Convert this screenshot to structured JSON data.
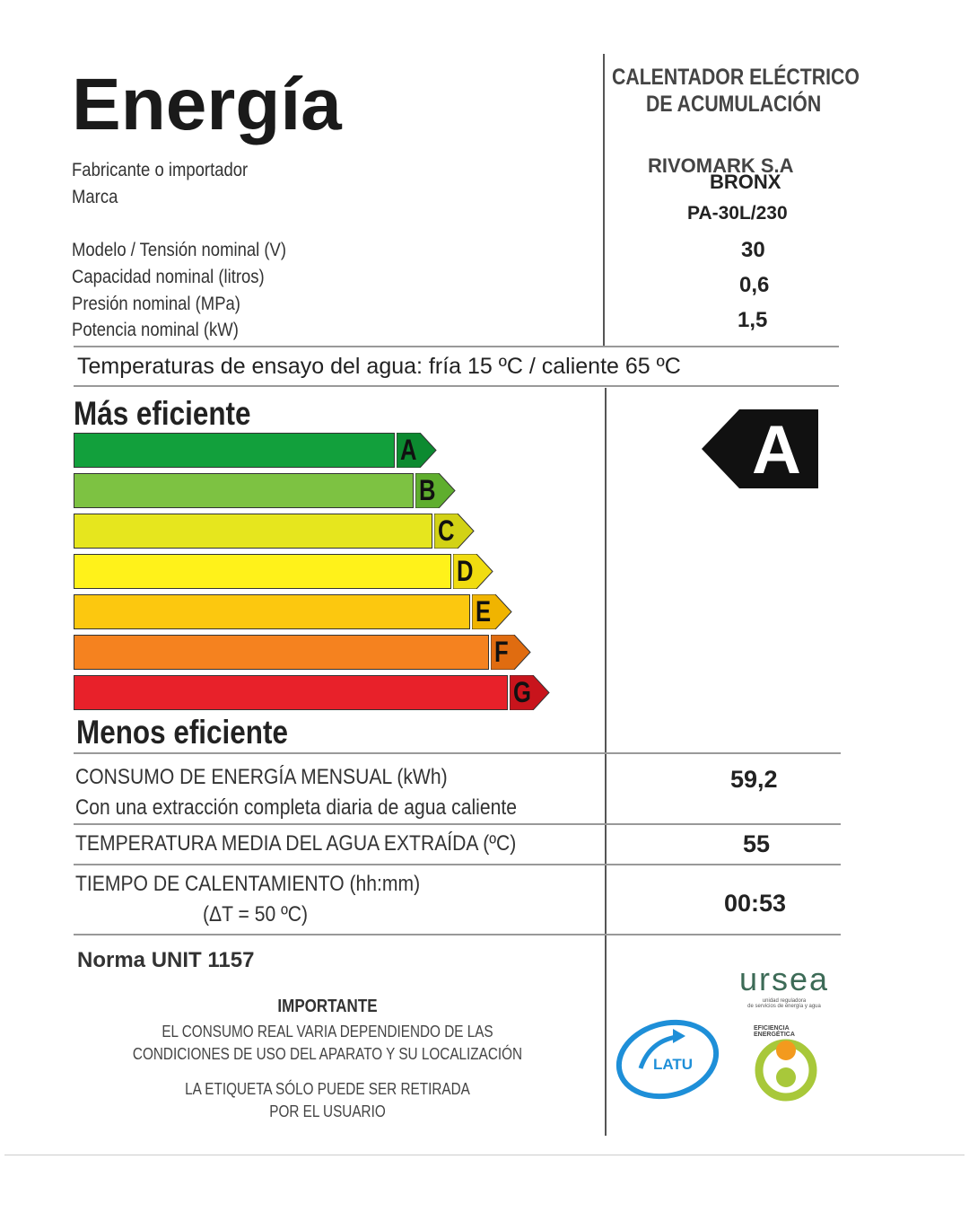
{
  "title": "Energía",
  "product_type": [
    "CALENTADOR ELÉCTRICO",
    "DE ACUMULACIÓN"
  ],
  "fields": [
    {
      "label": "Fabricante o importador",
      "value": "RIVOMARK S.A"
    },
    {
      "label": "Marca",
      "value": "BRONX"
    },
    {
      "label": "Modelo / Tensión nominal (V)",
      "value": "PA-30L/230"
    },
    {
      "label": "Capacidad nominal (litros)",
      "value": "30"
    },
    {
      "label": "Presión nominal (MPa)",
      "value": "0,6"
    },
    {
      "label": "Potencia nominal (kW)",
      "value": "1,5"
    }
  ],
  "test_temps": "Temperaturas de ensayo del agua: fría 15 ºC / caliente 65 ºC",
  "scale": {
    "top_label": "Más eficiente",
    "bottom_label": "Menos eficiente",
    "classes": [
      {
        "letter": "A",
        "color": "#12a03c",
        "tag_color": "#0c8a30"
      },
      {
        "letter": "B",
        "color": "#7dc242",
        "tag_color": "#5fae2e"
      },
      {
        "letter": "C",
        "color": "#e6e61e",
        "tag_color": "#d2d215"
      },
      {
        "letter": "D",
        "color": "#fff21a",
        "tag_color": "#f0dc10"
      },
      {
        "letter": "E",
        "color": "#fcc80f",
        "tag_color": "#f0b400"
      },
      {
        "letter": "F",
        "color": "#f5821f",
        "tag_color": "#e06c10"
      },
      {
        "letter": "G",
        "color": "#e8212a",
        "tag_color": "#c8141c"
      }
    ],
    "rating": "A"
  },
  "consumption": {
    "label": "CONSUMO DE ENERGÍA MENSUAL (kWh)",
    "sub": "Con una extracción completa diaria de agua caliente",
    "value": "59,2"
  },
  "temperature": {
    "label": "TEMPERATURA MEDIA DEL AGUA EXTRAÍDA (ºC)",
    "value": "55"
  },
  "heating": {
    "label": "TIEMPO DE CALENTAMIENTO (hh:mm)",
    "sub": "(ΔT = 50 ºC)",
    "value": "00:53"
  },
  "norma": "Norma UNIT 1157",
  "important": {
    "title": "IMPORTANTE",
    "lines": [
      "EL CONSUMO REAL VARIA DEPENDIENDO DE LAS",
      "CONDICIONES DE USO DEL APARATO Y SU LOCALIZACIÓN"
    ],
    "lines2": [
      "LA ETIQUETA SÓLO PUEDE SER RETIRADA",
      "POR EL USUARIO"
    ]
  },
  "logos": {
    "ursea": "ursea",
    "ursea_sub": [
      "unidad reguladora",
      "de servicios de energía y agua"
    ],
    "latu": "LATU",
    "eficiencia": "EFICIENCIA ENERGÉTICA"
  }
}
